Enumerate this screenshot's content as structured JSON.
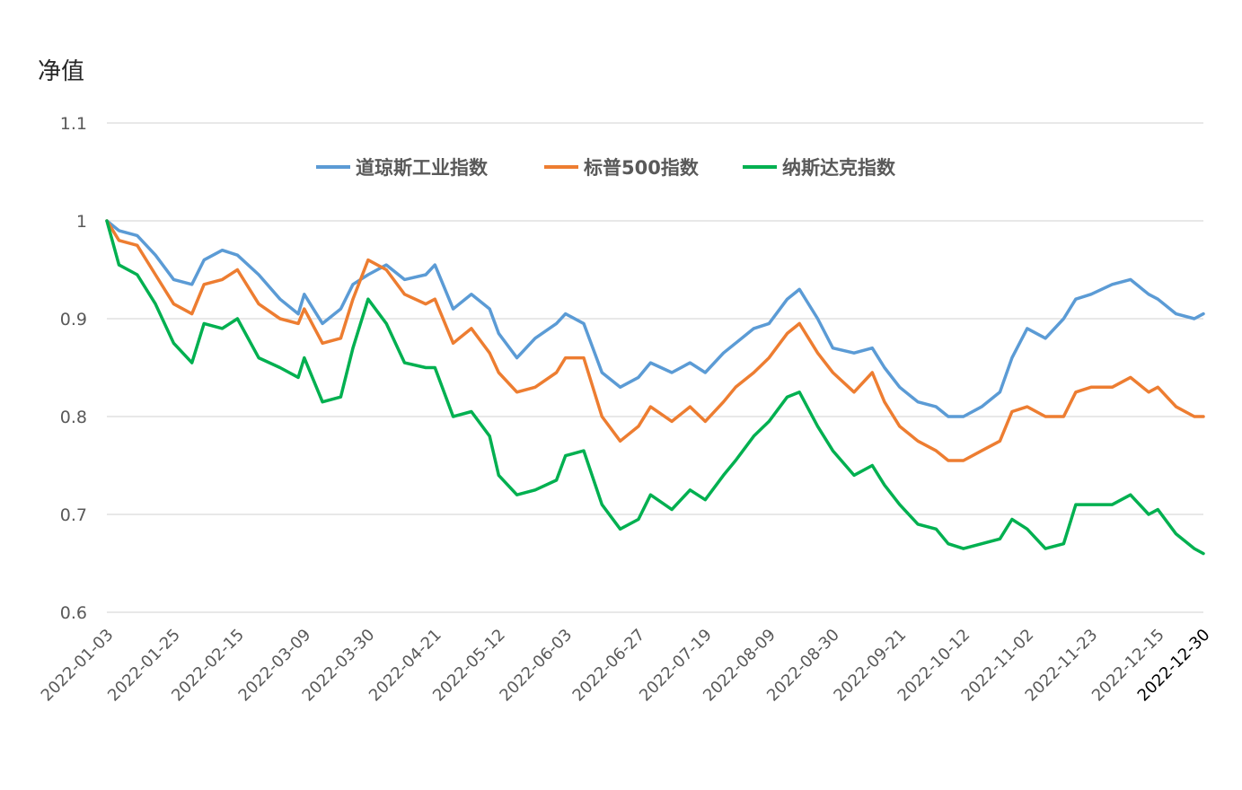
{
  "chart_data": {
    "type": "line",
    "ylabel": "净值",
    "ylim": [
      0.6,
      1.1
    ],
    "yticks": [
      "0.6",
      "0.7",
      "0.8",
      "0.9",
      "1",
      "1.1"
    ],
    "grid": true,
    "legend_position": "top",
    "x_tick_labels": [
      "2022-01-03",
      "2022-01-25",
      "2022-02-15",
      "2022-03-09",
      "2022-03-30",
      "2022-04-21",
      "2022-05-12",
      "2022-06-03",
      "2022-06-27",
      "2022-07-19",
      "2022-08-09",
      "2022-08-30",
      "2022-09-21",
      "2022-10-12",
      "2022-11-02",
      "2022-11-23",
      "2022-12-15",
      "2022-12-30"
    ],
    "x": [
      "2022-01-03",
      "2022-01-07",
      "2022-01-13",
      "2022-01-19",
      "2022-01-25",
      "2022-01-31",
      "2022-02-04",
      "2022-02-10",
      "2022-02-15",
      "2022-02-22",
      "2022-03-01",
      "2022-03-07",
      "2022-03-09",
      "2022-03-15",
      "2022-03-21",
      "2022-03-25",
      "2022-03-30",
      "2022-04-05",
      "2022-04-11",
      "2022-04-18",
      "2022-04-21",
      "2022-04-27",
      "2022-05-03",
      "2022-05-09",
      "2022-05-12",
      "2022-05-18",
      "2022-05-24",
      "2022-05-31",
      "2022-06-03",
      "2022-06-09",
      "2022-06-15",
      "2022-06-21",
      "2022-06-27",
      "2022-07-01",
      "2022-07-08",
      "2022-07-14",
      "2022-07-19",
      "2022-07-25",
      "2022-07-29",
      "2022-08-04",
      "2022-08-09",
      "2022-08-15",
      "2022-08-19",
      "2022-08-25",
      "2022-08-30",
      "2022-09-06",
      "2022-09-12",
      "2022-09-16",
      "2022-09-21",
      "2022-09-27",
      "2022-10-03",
      "2022-10-07",
      "2022-10-12",
      "2022-10-18",
      "2022-10-24",
      "2022-10-28",
      "2022-11-02",
      "2022-11-08",
      "2022-11-14",
      "2022-11-18",
      "2022-11-23",
      "2022-11-30",
      "2022-12-06",
      "2022-12-12",
      "2022-12-15",
      "2022-12-21",
      "2022-12-27",
      "2022-12-30"
    ],
    "series": [
      {
        "name": "道琼斯工业指数",
        "color": "#5b9bd5",
        "values": [
          1.0,
          0.99,
          0.985,
          0.965,
          0.94,
          0.935,
          0.96,
          0.97,
          0.965,
          0.945,
          0.92,
          0.905,
          0.925,
          0.895,
          0.91,
          0.935,
          0.945,
          0.955,
          0.94,
          0.945,
          0.955,
          0.91,
          0.925,
          0.91,
          0.885,
          0.86,
          0.88,
          0.895,
          0.905,
          0.895,
          0.845,
          0.83,
          0.84,
          0.855,
          0.845,
          0.855,
          0.845,
          0.865,
          0.875,
          0.89,
          0.895,
          0.92,
          0.93,
          0.9,
          0.87,
          0.865,
          0.87,
          0.85,
          0.83,
          0.815,
          0.81,
          0.8,
          0.8,
          0.81,
          0.825,
          0.86,
          0.89,
          0.88,
          0.9,
          0.92,
          0.925,
          0.935,
          0.94,
          0.925,
          0.92,
          0.905,
          0.9,
          0.905
        ]
      },
      {
        "name": "标普500指数",
        "color": "#ed7d31",
        "values": [
          1.0,
          0.98,
          0.975,
          0.945,
          0.915,
          0.905,
          0.935,
          0.94,
          0.95,
          0.915,
          0.9,
          0.895,
          0.91,
          0.875,
          0.88,
          0.92,
          0.96,
          0.95,
          0.925,
          0.915,
          0.92,
          0.875,
          0.89,
          0.865,
          0.845,
          0.825,
          0.83,
          0.845,
          0.86,
          0.86,
          0.8,
          0.775,
          0.79,
          0.81,
          0.795,
          0.81,
          0.795,
          0.815,
          0.83,
          0.845,
          0.86,
          0.885,
          0.895,
          0.865,
          0.845,
          0.825,
          0.845,
          0.815,
          0.79,
          0.775,
          0.765,
          0.755,
          0.755,
          0.765,
          0.775,
          0.805,
          0.81,
          0.8,
          0.8,
          0.825,
          0.83,
          0.83,
          0.84,
          0.825,
          0.83,
          0.81,
          0.8,
          0.8
        ]
      },
      {
        "name": "纳斯达克指数",
        "color": "#00b050",
        "values": [
          1.0,
          0.955,
          0.945,
          0.915,
          0.875,
          0.855,
          0.895,
          0.89,
          0.9,
          0.86,
          0.85,
          0.84,
          0.86,
          0.815,
          0.82,
          0.87,
          0.92,
          0.895,
          0.855,
          0.85,
          0.85,
          0.8,
          0.805,
          0.78,
          0.74,
          0.72,
          0.725,
          0.735,
          0.76,
          0.765,
          0.71,
          0.685,
          0.695,
          0.72,
          0.705,
          0.725,
          0.715,
          0.74,
          0.755,
          0.78,
          0.795,
          0.82,
          0.825,
          0.79,
          0.765,
          0.74,
          0.75,
          0.73,
          0.71,
          0.69,
          0.685,
          0.67,
          0.665,
          0.67,
          0.675,
          0.695,
          0.685,
          0.665,
          0.67,
          0.71,
          0.71,
          0.71,
          0.72,
          0.7,
          0.705,
          0.68,
          0.665,
          0.66
        ]
      }
    ]
  }
}
